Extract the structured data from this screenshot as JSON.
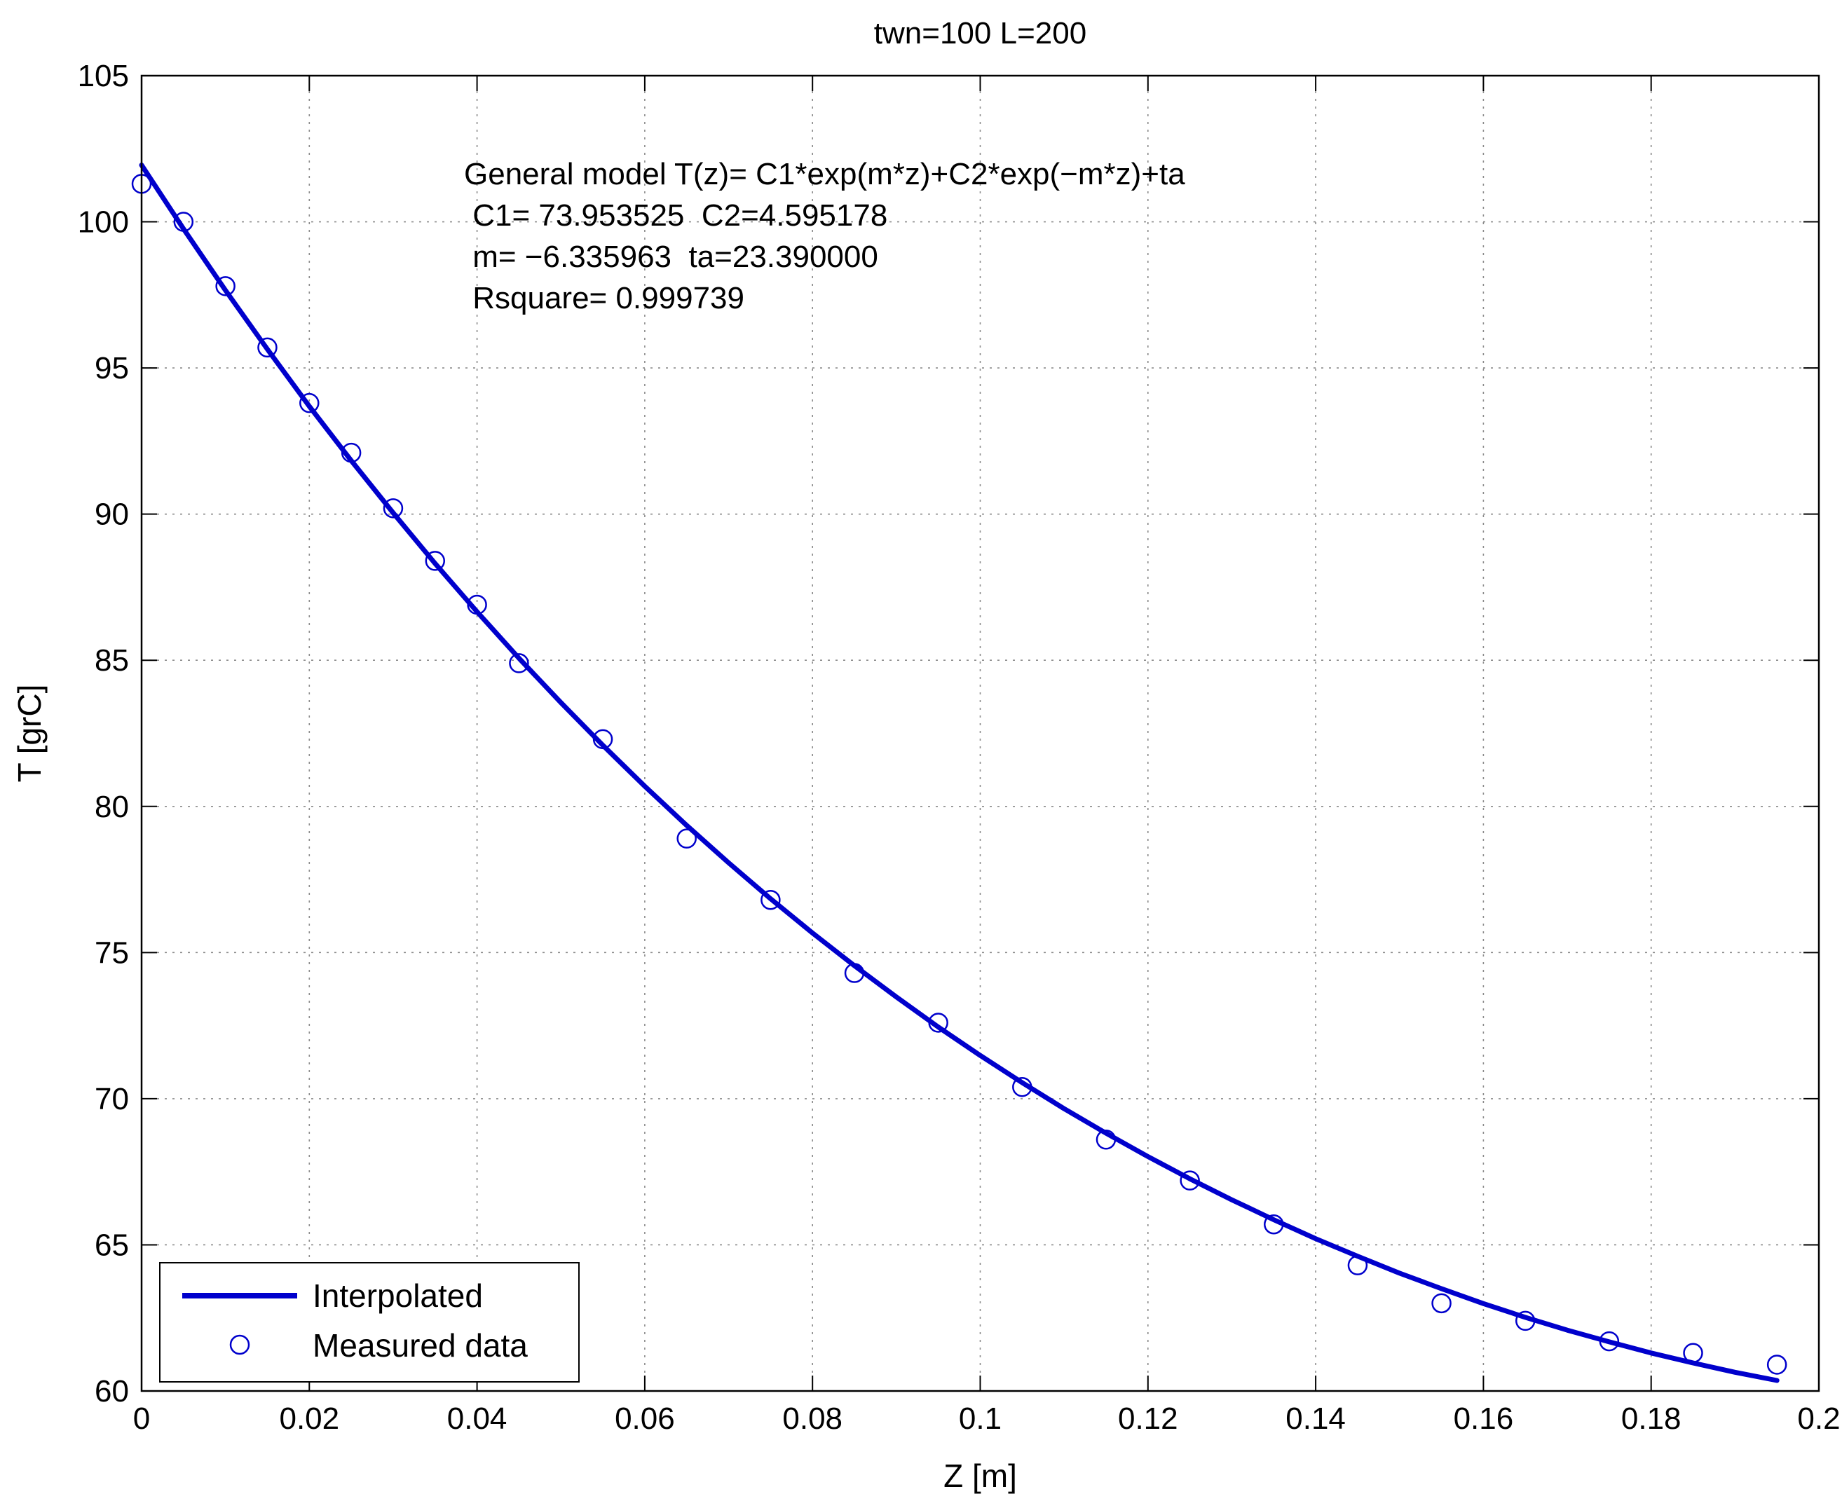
{
  "chart_data": {
    "type": "line",
    "title": "twn=100 L=200",
    "xlabel": "Z [m]",
    "ylabel": "T [grC]",
    "xlim": [
      0,
      0.2
    ],
    "ylim": [
      60,
      105
    ],
    "grid": true,
    "x_ticks": [
      "0",
      "0.02",
      "0.04",
      "0.06",
      "0.08",
      "0.1",
      "0.12",
      "0.14",
      "0.16",
      "0.18",
      "0.2"
    ],
    "y_ticks": [
      "60",
      "65",
      "70",
      "75",
      "80",
      "85",
      "90",
      "95",
      "100",
      "105"
    ],
    "annotation": [
      "General model T(z)= C1*exp(m*z)+C2*exp(−m*z)+ta",
      " C1= 73.953525  C2=4.595178",
      " m= −6.335963  ta=23.390000",
      " Rsquare= 0.999739"
    ],
    "model": {
      "C1": 73.953525,
      "C2": 4.595178,
      "m": -6.335963,
      "ta": 23.39
    },
    "legend": {
      "position": "bottom-left",
      "entries": [
        "Interpolated",
        "Measured data"
      ]
    },
    "series": [
      {
        "name": "Interpolated",
        "style": "line",
        "color": "#0000cc",
        "x": [
          0,
          0.005,
          0.01,
          0.015,
          0.02,
          0.025,
          0.03,
          0.035,
          0.04,
          0.045,
          0.05,
          0.055,
          0.06,
          0.065,
          0.07,
          0.075,
          0.08,
          0.085,
          0.09,
          0.095,
          0.1,
          0.105,
          0.11,
          0.115,
          0.12,
          0.125,
          0.13,
          0.135,
          0.14,
          0.145,
          0.15,
          0.155,
          0.16,
          0.165,
          0.17,
          0.175,
          0.18,
          0.185,
          0.19,
          0.195
        ],
        "y": [
          101.94,
          99.76,
          97.66,
          95.64,
          93.69,
          91.83,
          90.04,
          88.31,
          86.66,
          85.07,
          83.55,
          82.09,
          80.69,
          79.35,
          78.07,
          76.84,
          75.67,
          74.55,
          73.48,
          72.45,
          71.48,
          70.55,
          69.66,
          68.82,
          68.02,
          67.26,
          66.54,
          65.86,
          65.21,
          64.61,
          64.03,
          63.5,
          62.99,
          62.52,
          62.08,
          61.68,
          61.3,
          60.96,
          60.64,
          60.36
        ]
      },
      {
        "name": "Measured data",
        "style": "marker",
        "marker": "circle",
        "color": "#0000cc",
        "x": [
          0,
          0.005,
          0.01,
          0.015,
          0.02,
          0.025,
          0.03,
          0.035,
          0.04,
          0.045,
          0.055,
          0.065,
          0.075,
          0.085,
          0.095,
          0.105,
          0.115,
          0.125,
          0.135,
          0.145,
          0.155,
          0.165,
          0.175,
          0.185,
          0.195
        ],
        "y": [
          101.3,
          100.0,
          97.8,
          95.7,
          93.8,
          92.1,
          90.2,
          88.4,
          86.9,
          84.9,
          82.3,
          78.9,
          76.8,
          74.3,
          72.6,
          70.4,
          68.6,
          67.2,
          65.7,
          64.3,
          63.0,
          62.4,
          61.7,
          61.3,
          60.9
        ]
      }
    ]
  }
}
